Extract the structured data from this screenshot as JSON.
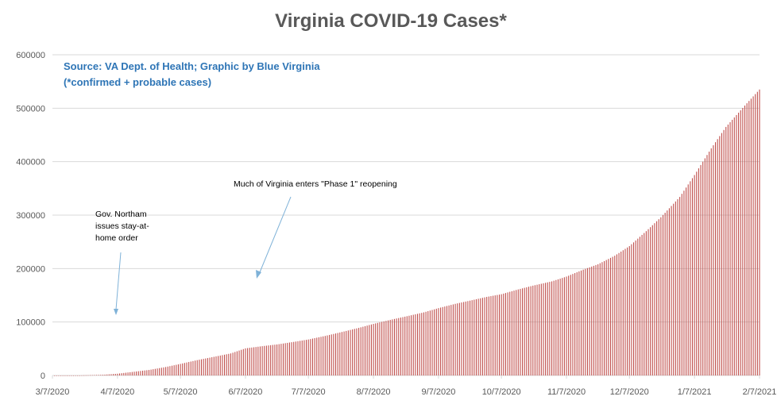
{
  "colors": {
    "bars": "#c0504d",
    "title": "#595959",
    "source": "#2e75b6",
    "gridline": "#d9d9d9",
    "axis_text": "#595959",
    "annotation_arrow": "#7fb2d8"
  },
  "chart_data": {
    "type": "bar",
    "title": "Virginia COVID-19 Cases*",
    "source_line1": "Source: VA Dept. of Health; Graphic by Blue Virginia",
    "source_line2": "(*confirmed + probable cases)",
    "xlabel": "",
    "ylabel": "",
    "ylim": [
      0,
      600000
    ],
    "xlim": [
      "2020-03-07",
      "2021-02-07"
    ],
    "grid": true,
    "y_ticks": [
      "0",
      "100000",
      "200000",
      "300000",
      "400000",
      "500000",
      "600000"
    ],
    "x_ticks": [
      {
        "date": "2020-03-07",
        "label": "3/7/2020"
      },
      {
        "date": "2020-04-07",
        "label": "4/7/2020"
      },
      {
        "date": "2020-05-07",
        "label": "5/7/2020"
      },
      {
        "date": "2020-06-07",
        "label": "6/7/2020"
      },
      {
        "date": "2020-07-07",
        "label": "7/7/2020"
      },
      {
        "date": "2020-08-07",
        "label": "8/7/2020"
      },
      {
        "date": "2020-09-07",
        "label": "9/7/2020"
      },
      {
        "date": "2020-10-07",
        "label": "10/7/2020"
      },
      {
        "date": "2020-11-07",
        "label": "11/7/2020"
      },
      {
        "date": "2020-12-07",
        "label": "12/7/2020"
      },
      {
        "date": "2021-01-07",
        "label": "1/7/2021"
      },
      {
        "date": "2021-02-07",
        "label": "2/7/2021"
      }
    ],
    "series": [
      {
        "points": [
          [
            "2020-03-07",
            0
          ],
          [
            "2020-03-20",
            100
          ],
          [
            "2020-03-31",
            1250
          ],
          [
            "2020-04-07",
            3300
          ],
          [
            "2020-04-15",
            7000
          ],
          [
            "2020-04-22",
            10300
          ],
          [
            "2020-04-30",
            15800
          ],
          [
            "2020-05-07",
            21600
          ],
          [
            "2020-05-15",
            28700
          ],
          [
            "2020-05-22",
            34100
          ],
          [
            "2020-05-31",
            41200
          ],
          [
            "2020-06-07",
            50700
          ],
          [
            "2020-06-15",
            54800
          ],
          [
            "2020-06-22",
            58000
          ],
          [
            "2020-06-30",
            62800
          ],
          [
            "2020-07-07",
            67300
          ],
          [
            "2020-07-15",
            74000
          ],
          [
            "2020-07-22",
            80400
          ],
          [
            "2020-07-31",
            89000
          ],
          [
            "2020-08-07",
            96500
          ],
          [
            "2020-08-15",
            104000
          ],
          [
            "2020-08-22",
            110000
          ],
          [
            "2020-08-31",
            118000
          ],
          [
            "2020-09-07",
            126000
          ],
          [
            "2020-09-15",
            134000
          ],
          [
            "2020-09-22",
            140000
          ],
          [
            "2020-09-30",
            147000
          ],
          [
            "2020-10-07",
            152000
          ],
          [
            "2020-10-15",
            161000
          ],
          [
            "2020-10-22",
            168000
          ],
          [
            "2020-10-31",
            176000
          ],
          [
            "2020-11-07",
            185000
          ],
          [
            "2020-11-15",
            198000
          ],
          [
            "2020-11-22",
            208000
          ],
          [
            "2020-11-30",
            224000
          ],
          [
            "2020-12-07",
            242000
          ],
          [
            "2020-12-15",
            270000
          ],
          [
            "2020-12-22",
            296000
          ],
          [
            "2020-12-31",
            334000
          ],
          [
            "2021-01-07",
            375000
          ],
          [
            "2021-01-15",
            425000
          ],
          [
            "2021-01-22",
            465000
          ],
          [
            "2021-01-31",
            505000
          ],
          [
            "2021-02-07",
            535000
          ]
        ]
      }
    ],
    "annotations": [
      {
        "lines": [
          "Gov. Northam",
          "issues stay-at-",
          "home order"
        ],
        "date": "2020-03-30"
      },
      {
        "lines": [
          "Much of Virginia enters \"Phase 1\" reopening"
        ],
        "date": "2020-05-15"
      }
    ]
  }
}
